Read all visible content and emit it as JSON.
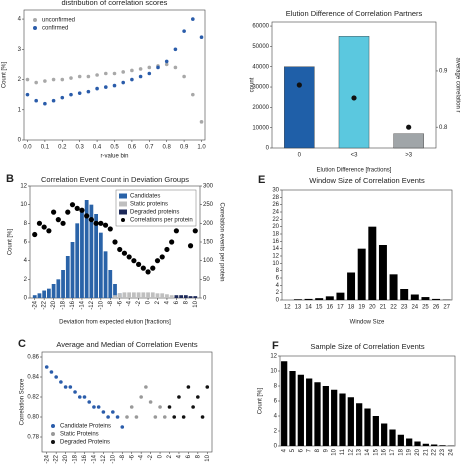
{
  "chart_data": [
    {
      "type": "scatter",
      "title": "distribution of correlation scores",
      "xlabel": "r-value bin",
      "ylabel": "Count [%]",
      "x": [
        0,
        0.05,
        0.1,
        0.15,
        0.2,
        0.25,
        0.3,
        0.35,
        0.4,
        0.45,
        0.5,
        0.55,
        0.6,
        0.65,
        0.7,
        0.75,
        0.8,
        0.85,
        0.9,
        0.95,
        1
      ],
      "series": [
        {
          "name": "unconfirmed",
          "color": "#a8a8a8",
          "values": [
            2.0,
            1.9,
            1.95,
            2.0,
            2.0,
            2.05,
            2.1,
            2.1,
            2.15,
            2.2,
            2.2,
            2.25,
            2.3,
            2.35,
            2.4,
            2.45,
            2.5,
            2.4,
            2.1,
            1.5,
            0.6
          ]
        },
        {
          "name": "confirmed",
          "color": "#2a5caa",
          "values": [
            1.5,
            1.3,
            1.2,
            1.3,
            1.4,
            1.5,
            1.55,
            1.6,
            1.7,
            1.75,
            1.8,
            1.9,
            2.0,
            2.1,
            2.2,
            2.4,
            2.6,
            3.0,
            3.6,
            4.0,
            3.4
          ]
        }
      ],
      "xlim": [
        -0.02,
        1.02
      ],
      "xticks": [
        {
          "value": 0,
          "label": "0.0"
        },
        0.1,
        0.2,
        0.3,
        0.4,
        0.5,
        0.6,
        0.7,
        0.8,
        0.9,
        {
          "value": 1,
          "label": "1.0"
        }
      ],
      "ylim": [
        0,
        4.3
      ],
      "yticks": [
        0,
        1,
        2,
        3,
        4
      ],
      "legend": "upper left"
    },
    {
      "type": "bar",
      "title": "Elution Difference of Correlation Partners",
      "xlabel": "Elution Difference [fractions]",
      "ylabel": "count",
      "y2label": "average correlation r",
      "categories": [
        "0",
        "<3",
        ">3"
      ],
      "series": [
        {
          "kind": "bar",
          "colors": [
            "#1f5fa8",
            "#5bc8df",
            "#a0a5a8"
          ],
          "values": [
            40000,
            55000,
            7000
          ]
        },
        {
          "kind": "dot",
          "axis": "y2",
          "color": "#111111",
          "values": [
            0.875,
            0.852,
            0.8
          ]
        }
      ],
      "ylim": [
        0,
        62000
      ],
      "yticks": [
        0,
        10000,
        20000,
        30000,
        40000,
        50000,
        60000
      ],
      "y2lim": [
        0.763,
        0.987
      ],
      "y2ticks": [
        0.8,
        0.9
      ]
    },
    {
      "type": "bar",
      "label": "B",
      "title": "Correlation Event Count in Deviation Groups",
      "xlabel": "Deviation from expected elution [fractions]",
      "ylabel": "Count [%]",
      "y2label": "Correlation events per protein",
      "x": [
        -24,
        -23,
        -22,
        -21,
        -20,
        -19,
        -18,
        -17,
        -16,
        -15,
        -14,
        -13,
        -12,
        -11,
        -10,
        -9,
        -8,
        -7,
        -6,
        -5,
        -4,
        -3,
        -2,
        -1,
        0,
        1,
        2,
        3,
        4,
        5,
        6,
        7,
        8,
        9,
        10
      ],
      "series": [
        {
          "name": "Candidates",
          "kind": "bar",
          "color": "#2a63a8",
          "values": [
            0.3,
            0.5,
            0.8,
            1,
            1.5,
            2,
            3,
            4.5,
            6,
            8,
            9.5,
            10.5,
            10,
            9,
            7,
            5,
            3,
            1.5,
            0.5,
            0,
            0,
            0,
            0,
            0,
            0,
            0,
            0,
            0,
            0,
            0,
            0,
            0,
            0,
            0,
            0
          ]
        },
        {
          "name": "Static proteins",
          "kind": "bar",
          "color": "#bfbfbf",
          "values": [
            0,
            0,
            0,
            0,
            0,
            0,
            0,
            0,
            0,
            0,
            0,
            0,
            0,
            0,
            0,
            0,
            0,
            0.3,
            0.5,
            0.6,
            0.6,
            0.6,
            0.6,
            0.6,
            0.6,
            0.6,
            0.5,
            0.5,
            0.4,
            0.3,
            0,
            0,
            0,
            0,
            0
          ]
        },
        {
          "name": "Degraded proteins",
          "kind": "bar",
          "color": "#1e2a5a",
          "values": [
            0,
            0,
            0,
            0,
            0,
            0,
            0,
            0,
            0,
            0,
            0,
            0,
            0,
            0,
            0,
            0,
            0,
            0,
            0,
            0,
            0,
            0,
            0,
            0,
            0,
            0,
            0,
            0,
            0,
            0,
            0.3,
            0.3,
            0.3,
            0.2,
            0.2
          ]
        },
        {
          "name": "Correlations per protein",
          "kind": "dot",
          "axis": "y2",
          "color": "#000000",
          "values": [
            170,
            200,
            190,
            180,
            230,
            210,
            200,
            230,
            250,
            240,
            235,
            220,
            210,
            200,
            200,
            195,
            185,
            150,
            130,
            120,
            110,
            100,
            90,
            80,
            70,
            80,
            100,
            110,
            130,
            150,
            180,
            200,
            230,
            140,
            180
          ]
        }
      ],
      "xlim": [
        -25,
        11
      ],
      "xticks": [
        -24,
        -22,
        -20,
        -18,
        -16,
        -14,
        -12,
        -10,
        -8,
        -6,
        -4,
        -2,
        0,
        2,
        4,
        6,
        8,
        10
      ],
      "ylim": [
        0,
        12
      ],
      "yticks": [
        0,
        2,
        4,
        6,
        8,
        10,
        12
      ],
      "y2lim": [
        0,
        300
      ],
      "y2ticks": [
        0,
        50,
        100,
        150,
        200,
        250,
        300
      ],
      "legend": "upper right"
    },
    {
      "type": "bar",
      "label": "E",
      "title": "Window Size of Correlation Events",
      "xlabel": "Window Size",
      "categories": [
        "12",
        "13",
        "14",
        "15",
        "16",
        "17",
        "18",
        "19",
        "20",
        "21",
        "22",
        "23",
        "24",
        "25",
        "26",
        "27"
      ],
      "series": [
        {
          "kind": "bar",
          "color": "#000000",
          "values": [
            0,
            0.2,
            0.3,
            0.5,
            1,
            2,
            7.5,
            14,
            20,
            15,
            7,
            3,
            1.5,
            0.8,
            0.3,
            0.1
          ]
        }
      ],
      "ylim": [
        0,
        30
      ],
      "yticks": [
        0,
        2,
        4,
        6,
        8,
        10,
        12,
        14,
        16,
        18,
        20,
        22,
        24,
        26,
        28,
        30
      ]
    },
    {
      "type": "scatter",
      "label": "C",
      "title": "Average and Median of Correlation Events",
      "ylabel": "Correlation Score",
      "series": [
        {
          "name": "Candidate Proteins",
          "color": "#2a5caa",
          "x": [
            -24,
            -23,
            -22,
            -21,
            -20,
            -19,
            -18,
            -17,
            -16,
            -15,
            -14,
            -13,
            -12,
            -11,
            -10,
            -9,
            -8
          ],
          "values": [
            0.85,
            0.845,
            0.84,
            0.835,
            0.83,
            0.83,
            0.825,
            0.82,
            0.82,
            0.815,
            0.81,
            0.81,
            0.805,
            0.8,
            0.805,
            0.8,
            0.79
          ]
        },
        {
          "name": "Static Proteins",
          "color": "#999999",
          "x": [
            -7,
            -6,
            -5,
            -4,
            -3,
            -2,
            -1,
            0,
            1
          ],
          "values": [
            0.8,
            0.81,
            0.8,
            0.82,
            0.83,
            0.815,
            0.8,
            0.81,
            0.8
          ]
        },
        {
          "name": "Degraded Proteins",
          "color": "#111111",
          "x": [
            2,
            3,
            4,
            5,
            6,
            7,
            8,
            9,
            10
          ],
          "values": [
            0.81,
            0.8,
            0.82,
            0.8,
            0.83,
            0.81,
            0.82,
            0.8,
            0.83
          ]
        }
      ],
      "xlim": [
        -25,
        11
      ],
      "xticks": [
        -24,
        -22,
        -20,
        -18,
        -16,
        -14,
        -12,
        -10,
        -8,
        -6,
        -4,
        -2,
        0,
        2,
        4,
        6,
        8,
        10
      ],
      "ylim": [
        0.765,
        0.865
      ],
      "yticks": [
        0.78,
        {
          "value": 0.8,
          "label": "0.80"
        },
        0.82,
        0.84,
        0.86
      ],
      "legend": "lower left"
    },
    {
      "type": "bar",
      "label": "F",
      "title": "Sample Size of Correlation Events",
      "ylabel": "Count [%]",
      "categories": [
        "4",
        "5",
        "6",
        "7",
        "8",
        "9",
        "10",
        "11",
        "12",
        "13",
        "14",
        "15",
        "16",
        "17",
        "18",
        "19",
        "20",
        "21",
        "22",
        "23",
        "24"
      ],
      "series": [
        {
          "kind": "bar",
          "color": "#000000",
          "values": [
            11.3,
            10,
            9.5,
            9,
            8.5,
            8,
            7.5,
            7,
            6.5,
            5.7,
            5,
            4,
            3,
            2.2,
            1.5,
            1,
            0.6,
            0.3,
            0.2,
            0.1,
            0.05
          ]
        }
      ],
      "ylim": [
        0,
        12
      ],
      "yticks": [
        0,
        2,
        4,
        6,
        8,
        10,
        12
      ]
    }
  ]
}
